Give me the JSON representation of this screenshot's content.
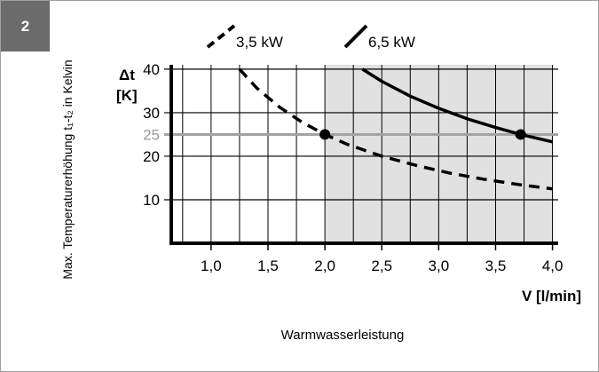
{
  "figure": {
    "number": "2"
  },
  "chart_data": {
    "type": "line",
    "xlabel": "V [l/min]",
    "ylabel_unit": "Δt",
    "ylabel_unit2": "[K]",
    "yaxis_title": "Max. Temperaturerhöhung t₁-t₂ in Kelvin",
    "caption": "Warmwasserleistung",
    "xlim": [
      0.65,
      4.05
    ],
    "ylim": [
      0,
      41
    ],
    "x_ticks": [
      {
        "value": 1.0,
        "label": "1,0"
      },
      {
        "value": 1.5,
        "label": "1,5"
      },
      {
        "value": 2.0,
        "label": "2,0"
      },
      {
        "value": 2.5,
        "label": "2,5"
      },
      {
        "value": 3.0,
        "label": "3,0"
      },
      {
        "value": 3.5,
        "label": "3,5"
      },
      {
        "value": 4.0,
        "label": "4,0"
      }
    ],
    "y_ticks": [
      {
        "value": 10,
        "label": "10"
      },
      {
        "value": 20,
        "label": "20"
      },
      {
        "value": 25,
        "label": "25",
        "highlight": true
      },
      {
        "value": 30,
        "label": "30"
      },
      {
        "value": 40,
        "label": "40"
      }
    ],
    "shaded_region": {
      "x_from": 2.0,
      "x_to": 4.0,
      "color": "#e1e1e1"
    },
    "reference_line": {
      "y": 25,
      "color": "#a3a3a3"
    },
    "series": [
      {
        "name": "3,5 kW",
        "style": "dashed",
        "color": "#000000",
        "x": [
          1.25,
          1.4,
          1.6,
          1.8,
          2.0,
          2.2,
          2.5,
          2.8,
          3.1,
          3.4,
          3.7,
          4.0
        ],
        "y": [
          40,
          35.7,
          31.3,
          27.8,
          25,
          22.7,
          20,
          17.9,
          16.1,
          14.7,
          13.5,
          12.5
        ],
        "marker": {
          "x": 2.0,
          "y": 25
        }
      },
      {
        "name": "6,5 kW",
        "style": "solid",
        "color": "#000000",
        "x": [
          2.33,
          2.5,
          2.75,
          3.0,
          3.25,
          3.5,
          3.72,
          4.0
        ],
        "y": [
          40,
          37.2,
          33.8,
          31,
          28.6,
          26.6,
          25,
          23.3
        ],
        "marker": {
          "x": 3.72,
          "y": 25
        }
      }
    ],
    "colors": {
      "axis": "#000000",
      "grid": "#000000",
      "highlight_tick": "#9a9a9a"
    }
  }
}
